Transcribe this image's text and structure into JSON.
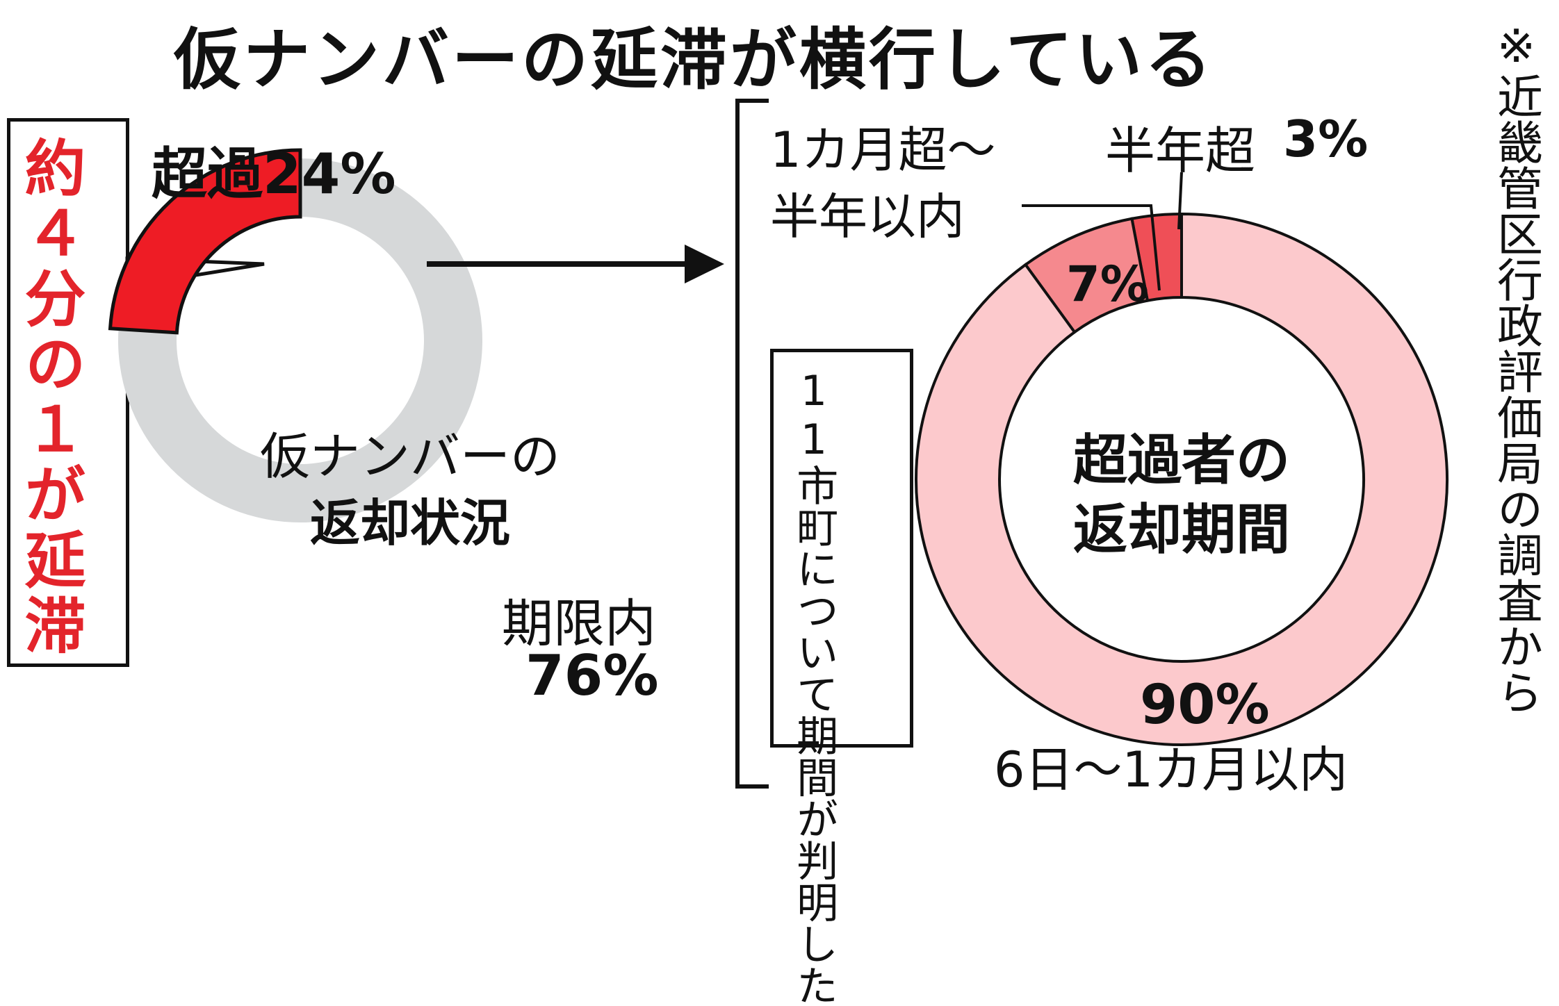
{
  "title": "仮ナンバーの延滞が横行している",
  "source_note": "※近畿管区行政評価局の調査から",
  "callout": "約４分の１が延滞",
  "left_chart": {
    "center_line1": "仮ナンバーの",
    "center_line2": "返却状況",
    "overdue_label": "超過24%",
    "within_label": "期限内",
    "within_value": "76%"
  },
  "right_chart": {
    "center_line1": "超過者の",
    "center_line2": "返却期間",
    "note": "11市町について期間が判明した",
    "half_year_label": "半年超",
    "half_year_value": "3%",
    "month_label_line1": "1カ月超～",
    "month_label_line2": "半年以内",
    "month_value": "7%",
    "main_value": "90%",
    "main_label": "6日～1カ月以内"
  },
  "colors": {
    "overdue": "#ee1c25",
    "within": "#d6d8d9",
    "main": "#fcc9cc",
    "month": "#f5898e",
    "half_year": "#ef4f57",
    "callout_text": "#e3242b"
  },
  "chart_data": [
    {
      "type": "pie",
      "title": "仮ナンバーの返却状況",
      "slices": [
        {
          "label": "超過",
          "value": 24
        },
        {
          "label": "期限内",
          "value": 76
        }
      ]
    },
    {
      "type": "pie",
      "title": "超過者の返却期間",
      "slices": [
        {
          "label": "半年超",
          "value": 3
        },
        {
          "label": "1カ月超～半年以内",
          "value": 7
        },
        {
          "label": "6日～1カ月以内",
          "value": 90
        }
      ]
    }
  ]
}
